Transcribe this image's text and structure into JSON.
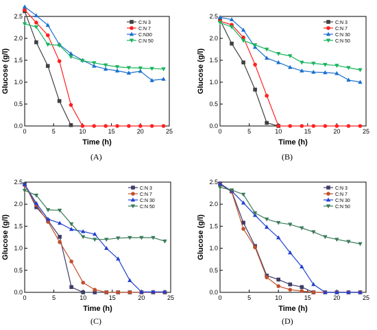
{
  "figure": {
    "panel_labels": [
      "(A)",
      "(B)",
      "(C)",
      "(D)"
    ]
  },
  "chart_data": [
    {
      "panel": "(A)",
      "type": "line",
      "xlabel": "Time (h)",
      "ylabel": "Glucose (g/l)",
      "xlim": [
        0,
        25
      ],
      "ylim": [
        0,
        2.5
      ],
      "xticks": [
        0,
        5,
        10,
        15,
        20,
        25
      ],
      "yticks": [
        0.0,
        0.5,
        1.0,
        1.5,
        2.0,
        2.5
      ],
      "legend_position": "top-right",
      "series": [
        {
          "name": "C:N 3",
          "color": "#404040",
          "marker": "square",
          "x": [
            0,
            2,
            4,
            6,
            8
          ],
          "y": [
            2.62,
            1.91,
            1.37,
            0.57,
            0.02
          ]
        },
        {
          "name": "C:N 7",
          "color": "#ff2020",
          "marker": "circle",
          "x": [
            0,
            2,
            4,
            6,
            8,
            10,
            12,
            14,
            16,
            18,
            20,
            22,
            24
          ],
          "y": [
            2.65,
            2.36,
            2.07,
            1.48,
            0.48,
            0.0,
            0.0,
            0.0,
            0.0,
            0.0,
            0.0,
            0.0,
            0.0
          ]
        },
        {
          "name": "C:N30",
          "color": "#1a6fd0",
          "marker": "triangle-up",
          "x": [
            0,
            2,
            4,
            6,
            8,
            10,
            12,
            14,
            16,
            18,
            20,
            22,
            24
          ],
          "y": [
            2.72,
            2.52,
            2.3,
            1.86,
            1.65,
            1.5,
            1.37,
            1.3,
            1.26,
            1.21,
            1.25,
            1.04,
            1.07
          ]
        },
        {
          "name": "C:N 50",
          "color": "#19b35c",
          "marker": "triangle-down",
          "x": [
            0,
            2,
            4,
            6,
            8,
            10,
            12,
            14,
            16,
            18,
            20,
            22,
            24
          ],
          "y": [
            2.33,
            2.26,
            1.86,
            1.84,
            1.58,
            1.49,
            1.44,
            1.39,
            1.35,
            1.33,
            1.32,
            1.31,
            1.3
          ]
        }
      ]
    },
    {
      "panel": "(B)",
      "type": "line",
      "xlabel": "Time (h)",
      "ylabel": "Glucose (g/l)",
      "xlim": [
        0,
        25
      ],
      "ylim": [
        0,
        2.5
      ],
      "xticks": [
        0,
        5,
        10,
        15,
        20,
        25
      ],
      "yticks": [
        0.0,
        0.5,
        1.0,
        1.5,
        2.0,
        2.5
      ],
      "legend_position": "top-right",
      "series": [
        {
          "name": "C:N 3",
          "color": "#404040",
          "marker": "square",
          "x": [
            0,
            2,
            4,
            6,
            8,
            10
          ],
          "y": [
            2.42,
            1.88,
            1.45,
            0.83,
            0.07,
            0.0
          ]
        },
        {
          "name": "C:N 7",
          "color": "#ff2020",
          "marker": "circle",
          "x": [
            0,
            2,
            4,
            6,
            8,
            10,
            12,
            14,
            16,
            18,
            20,
            22,
            24
          ],
          "y": [
            2.39,
            2.31,
            2.02,
            1.4,
            0.69,
            0.0,
            0.0,
            0.0,
            0.0,
            0.0,
            0.0,
            0.0,
            0.0
          ]
        },
        {
          "name": "C:N 30",
          "color": "#1a6fd0",
          "marker": "triangle-up",
          "x": [
            0,
            2,
            4,
            6,
            8,
            10,
            12,
            14,
            16,
            18,
            20,
            22,
            24
          ],
          "y": [
            2.48,
            2.43,
            2.19,
            1.8,
            1.55,
            1.45,
            1.34,
            1.26,
            1.23,
            1.22,
            1.2,
            1.05,
            1.0
          ]
        },
        {
          "name": "C:N 50",
          "color": "#19b35c",
          "marker": "triangle-down",
          "x": [
            0,
            2,
            4,
            6,
            8,
            10,
            12,
            14,
            16,
            18,
            20,
            22,
            24
          ],
          "y": [
            2.36,
            2.26,
            1.95,
            1.85,
            1.75,
            1.65,
            1.6,
            1.45,
            1.43,
            1.4,
            1.38,
            1.33,
            1.28
          ]
        }
      ]
    },
    {
      "panel": "(C)",
      "type": "line",
      "xlabel": "Time (h)",
      "ylabel": "Glucose (g/l)",
      "xlim": [
        0,
        25
      ],
      "ylim": [
        0,
        2.5
      ],
      "xticks": [
        0,
        5,
        10,
        15,
        20,
        25
      ],
      "yticks": [
        0.0,
        0.5,
        1.0,
        1.5,
        2.0,
        2.5
      ],
      "legend_position": "top-right",
      "series": [
        {
          "name": "C:N 3",
          "color": "#3d3d66",
          "marker": "square",
          "x": [
            0,
            2,
            4,
            6,
            8,
            10,
            12,
            14,
            16,
            18,
            20,
            22,
            24
          ],
          "y": [
            2.45,
            1.93,
            1.63,
            1.26,
            0.12,
            0.0,
            0.0,
            0.0,
            0.0,
            0.0,
            0.0,
            0.0,
            0.0
          ]
        },
        {
          "name": "C:N 7",
          "color": "#c0502a",
          "marker": "circle",
          "x": [
            0,
            2,
            4,
            6,
            8,
            10,
            12,
            14,
            16,
            18,
            20,
            22,
            24
          ],
          "y": [
            2.43,
            1.98,
            1.6,
            1.14,
            0.7,
            0.22,
            0.06,
            0.0,
            0.0,
            0.0,
            0.0,
            0.0,
            0.0
          ]
        },
        {
          "name": "C:N 30",
          "color": "#1f3fd0",
          "marker": "triangle-up",
          "x": [
            0,
            2,
            4,
            6,
            8,
            10,
            12,
            14,
            16,
            18,
            20,
            22,
            24
          ],
          "y": [
            2.45,
            2.02,
            1.66,
            1.57,
            1.43,
            1.38,
            1.32,
            1.0,
            0.76,
            0.27,
            0.01,
            0.01,
            0.01
          ]
        },
        {
          "name": "C:N 50",
          "color": "#3a7a58",
          "marker": "triangle-down",
          "x": [
            0,
            2,
            4,
            6,
            8,
            10,
            12,
            14,
            16,
            18,
            20,
            22,
            24
          ],
          "y": [
            2.31,
            2.2,
            1.87,
            1.86,
            1.55,
            1.26,
            1.2,
            1.2,
            1.23,
            1.24,
            1.24,
            1.24,
            1.16
          ]
        }
      ]
    },
    {
      "panel": "(D)",
      "type": "line",
      "xlabel": "Time (h)",
      "ylabel": "Glucose (g/l)",
      "xlim": [
        0,
        25
      ],
      "ylim": [
        0,
        2.5
      ],
      "xticks": [
        0,
        5,
        10,
        15,
        20,
        25
      ],
      "yticks": [
        0.0,
        0.5,
        1.0,
        1.5,
        2.0,
        2.5
      ],
      "legend_position": "top-right",
      "series": [
        {
          "name": "C:N 3",
          "color": "#3d3d66",
          "marker": "square",
          "x": [
            0,
            2,
            4,
            6,
            8,
            10,
            12,
            14,
            16,
            18,
            20,
            22,
            24
          ],
          "y": [
            2.47,
            2.29,
            1.58,
            1.05,
            0.38,
            0.29,
            0.18,
            0.12,
            0.0,
            0.0,
            0.0,
            0.0,
            0.0
          ]
        },
        {
          "name": "C:N 7",
          "color": "#c0502a",
          "marker": "circle",
          "x": [
            0,
            2,
            4,
            6,
            8,
            10,
            12,
            14,
            16,
            18,
            20,
            22,
            24
          ],
          "y": [
            2.45,
            2.28,
            1.44,
            1.02,
            0.34,
            0.14,
            0.06,
            0.03,
            0.0,
            0.0,
            0.0,
            0.0,
            0.0
          ]
        },
        {
          "name": "C:N 30",
          "color": "#1f3fd0",
          "marker": "triangle-up",
          "x": [
            0,
            2,
            4,
            6,
            8,
            10,
            12,
            14,
            16,
            18,
            20,
            22,
            24
          ],
          "y": [
            2.46,
            2.3,
            2.03,
            1.75,
            1.48,
            1.24,
            0.9,
            0.58,
            0.18,
            0.0,
            0.0,
            0.0,
            0.0
          ]
        },
        {
          "name": "C:N 50",
          "color": "#3a7a58",
          "marker": "triangle-down",
          "x": [
            0,
            2,
            4,
            6,
            8,
            10,
            12,
            14,
            16,
            18,
            20,
            22,
            24
          ],
          "y": [
            2.38,
            2.32,
            2.22,
            1.8,
            1.66,
            1.58,
            1.54,
            1.46,
            1.37,
            1.26,
            1.2,
            1.15,
            1.1
          ]
        }
      ]
    }
  ]
}
